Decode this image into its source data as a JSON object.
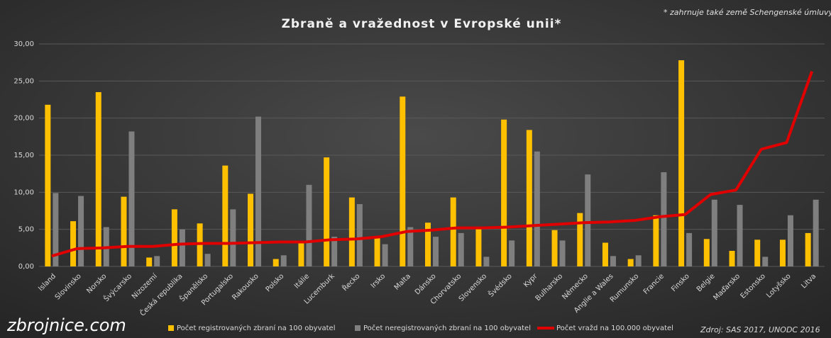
{
  "chart_data": {
    "type": "bar-line",
    "title": "Zbraně a vražednost v Evropské unii*",
    "note": "* zahrnuje také země Schengenské úmluvy",
    "watermark": "zbrojnice.com",
    "source": "Zdroj: SAS 2017, UNODC 2016",
    "categories": [
      "Island",
      "Slovinsko",
      "Norsko",
      "Švýcarsko",
      "Nizozemí",
      "Česká republika",
      "Španělsko",
      "Portugalsko",
      "Rakousko",
      "Polsko",
      "Itálie",
      "Lucemburk",
      "Řecko",
      "Irsko",
      "Malta",
      "Dánsko",
      "Chorvatsko",
      "Slovensko",
      "Švédsko",
      "Kypr",
      "Bulharsko",
      "Německo",
      "Anglie a Wales",
      "Rumunsko",
      "Francie",
      "Finsko",
      "Belgie",
      "Maďarsko",
      "Estonsko",
      "Lotyšsko",
      "Litva"
    ],
    "series": [
      {
        "name": "Počet registrovaných zbraní na 100 obyvatel",
        "type": "bar",
        "color": "#ffc000",
        "values": [
          21.8,
          6.1,
          23.5,
          9.4,
          1.2,
          7.7,
          5.8,
          13.6,
          9.8,
          1.0,
          3.3,
          14.7,
          9.3,
          4.0,
          22.9,
          5.9,
          9.3,
          5.2,
          19.8,
          18.4,
          4.9,
          7.2,
          3.2,
          1.0,
          6.9,
          27.8,
          3.7,
          2.1,
          3.6,
          3.6,
          4.5
        ]
      },
      {
        "name": "Počet neregistrovaných zbraní na 100 obyvatel",
        "type": "bar",
        "color": "#7f7f7f",
        "values": [
          9.9,
          9.5,
          5.3,
          18.2,
          1.4,
          5.0,
          1.7,
          7.7,
          20.2,
          1.5,
          11.0,
          4.0,
          8.4,
          3.0,
          5.3,
          4.0,
          4.5,
          1.3,
          3.5,
          15.5,
          3.5,
          12.4,
          1.4,
          1.5,
          12.7,
          4.5,
          9.0,
          8.3,
          1.3,
          6.9,
          9.0
        ]
      },
      {
        "name": "Počet vražd na 100.000 obyvatel",
        "type": "line",
        "color": "#e00000",
        "values": [
          1.4,
          2.4,
          2.5,
          2.7,
          2.7,
          3.0,
          3.1,
          3.1,
          3.2,
          3.3,
          3.3,
          3.6,
          3.7,
          4.0,
          4.7,
          4.9,
          5.2,
          5.2,
          5.3,
          5.5,
          5.7,
          5.9,
          6.0,
          6.2,
          6.7,
          7.0,
          9.7,
          10.3,
          15.8,
          16.7,
          26.3
        ]
      }
    ],
    "ylim": [
      0,
      30
    ],
    "yticks": [
      {
        "value": 0,
        "label": "0,00"
      },
      {
        "value": 5,
        "label": "5,00"
      },
      {
        "value": 10,
        "label": "10,00"
      },
      {
        "value": 15,
        "label": "15,00"
      },
      {
        "value": 20,
        "label": "20,00"
      },
      {
        "value": 25,
        "label": "25,00"
      },
      {
        "value": 30,
        "label": "30,00"
      }
    ],
    "grid": true
  }
}
